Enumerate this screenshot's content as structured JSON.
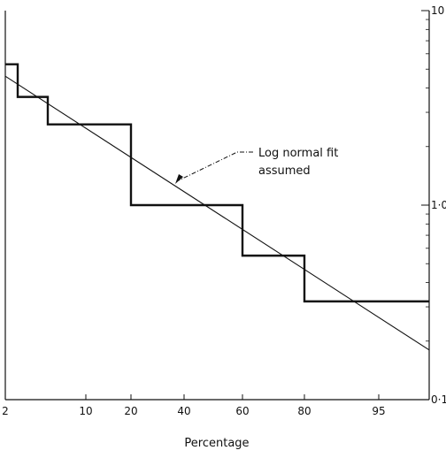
{
  "chart_data": {
    "type": "line",
    "xlabel": "Percentage",
    "ylabel": "",
    "x_scale": "probability",
    "y_scale": "log",
    "x_ticks": [
      "2",
      "10",
      "20",
      "40",
      "60",
      "80",
      "95"
    ],
    "y_ticks": [
      "10",
      "1·0",
      "0·1"
    ],
    "ylim": [
      0.1,
      10
    ],
    "xlim": [
      2,
      99
    ],
    "grid": false,
    "series": [
      {
        "kind": "step",
        "points": [
          {
            "x": 2,
            "y": 5.3
          },
          {
            "x": 3,
            "y": 3.6
          },
          {
            "x": 6,
            "y": 2.6
          },
          {
            "x": 20,
            "y": 1.0
          },
          {
            "x": 60,
            "y": 0.55
          },
          {
            "x": 80,
            "y": 0.32
          },
          {
            "x": 99,
            "y": 0.32
          }
        ]
      },
      {
        "kind": "fit",
        "points": [
          {
            "x": 2,
            "y": 4.6
          },
          {
            "x": 99,
            "y": 0.18
          }
        ]
      }
    ],
    "annotations": [
      {
        "text_lines": [
          "Log normal fit",
          "assumed"
        ],
        "points_to": {
          "x": 35,
          "y": 1.0
        }
      }
    ]
  }
}
